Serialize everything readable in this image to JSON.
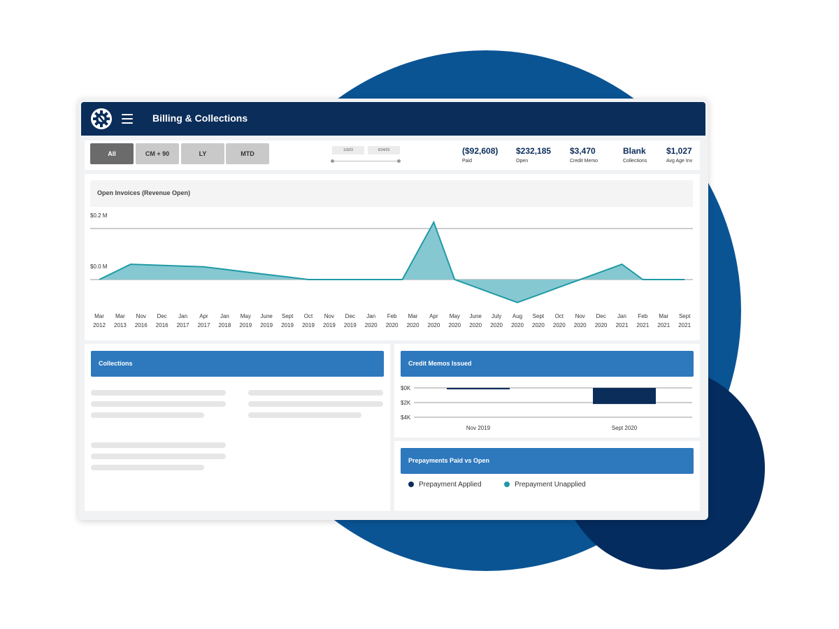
{
  "app": {
    "title": "Billing & Collections",
    "logo_icon": "gear-wrench-logo-icon",
    "menu_icon": "hamburger-menu-icon"
  },
  "filters": {
    "buttons": [
      {
        "label": "All",
        "active": true
      },
      {
        "label": "CM + 90",
        "active": false
      },
      {
        "label": "LY",
        "active": false
      },
      {
        "label": "MTD",
        "active": false
      }
    ],
    "date_start": "1/3/23",
    "date_end": "5/24/23"
  },
  "kpis": [
    {
      "value": "($92,608)",
      "label": "Paid"
    },
    {
      "value": "$232,185",
      "label": "Open"
    },
    {
      "value": "$3,470",
      "label": "Credit Memo"
    },
    {
      "value": "Blank",
      "label": "Collections"
    },
    {
      "value": "$1,027",
      "label": "Avg Age Inv"
    }
  ],
  "open_invoices": {
    "title": "Open Invoices (Revenue Open)",
    "chart_data": {
      "type": "area",
      "title": "Open Invoices (Revenue Open)",
      "y_tick_labels": [
        "$0.2 M",
        "$0.0 M"
      ],
      "y_ticks": [
        0.2,
        0.0
      ],
      "ylim": [
        -0.09,
        0.22
      ],
      "categories": [
        [
          "Mar",
          "2012"
        ],
        [
          "Mar",
          "2013"
        ],
        [
          "Nov",
          "2016"
        ],
        [
          "Dec",
          "2016"
        ],
        [
          "Jan",
          "2017"
        ],
        [
          "Apr",
          "2017"
        ],
        [
          "Jan",
          "2018"
        ],
        [
          "May",
          "2019"
        ],
        [
          "June",
          "2019"
        ],
        [
          "Sept",
          "2019"
        ],
        [
          "Oct",
          "2019"
        ],
        [
          "Nov",
          "2019"
        ],
        [
          "Dec",
          "2019"
        ],
        [
          "Jan",
          "2020"
        ],
        [
          "Feb",
          "2020"
        ],
        [
          "Mar",
          "2020"
        ],
        [
          "Apr",
          "2020"
        ],
        [
          "May",
          "2020"
        ],
        [
          "June",
          "2020"
        ],
        [
          "July",
          "2020"
        ],
        [
          "Aug",
          "2020"
        ],
        [
          "Sept",
          "2020"
        ],
        [
          "Oct",
          "2020"
        ],
        [
          "Nov",
          "2020"
        ],
        [
          "Dec",
          "2020"
        ],
        [
          "Jan",
          "2021"
        ],
        [
          "Feb",
          "2021"
        ],
        [
          "Mar",
          "2021"
        ],
        [
          "Sept",
          "2021"
        ]
      ],
      "values": [
        0.0,
        0.02,
        0.04,
        0.06,
        0.05,
        0.04,
        0.03,
        0.02,
        0.01,
        0.0,
        0.0,
        0.0,
        0.0,
        0.0,
        0.0,
        0.0,
        0.225,
        0.0,
        -0.03,
        -0.06,
        -0.09,
        -0.06,
        -0.03,
        0.0,
        0.03,
        0.06,
        0.0,
        0.0,
        0.0
      ],
      "point_x_index": [
        0,
        0.5,
        1,
        1.5,
        5,
        6,
        7,
        8,
        9,
        10,
        11,
        12,
        13,
        13.5,
        14,
        14.5,
        16,
        17,
        18,
        19,
        20,
        21,
        22,
        23,
        24,
        25,
        26,
        27,
        28
      ],
      "fill": "#86c8d1",
      "stroke": "#1f9aa5",
      "grid": true
    }
  },
  "collections": {
    "title": "Collections"
  },
  "credit_memos": {
    "title": "Credit Memos Issued",
    "chart_data": {
      "type": "bar",
      "title": "Credit Memos Issued",
      "categories": [
        "Nov 2019",
        "Sept 2020"
      ],
      "values": [
        -0.2,
        -2.2
      ],
      "y_tick_labels": [
        "$0K",
        "$2K",
        "$4K"
      ],
      "y_ticks": [
        0,
        -2,
        -4
      ],
      "ylim": [
        -4,
        0
      ],
      "color": "#0b2d5a",
      "grid": true
    }
  },
  "prepayments": {
    "title": "Prepayments Paid vs Open",
    "legend": [
      {
        "label": "Prepayment Applied",
        "color": "#0b2d5a"
      },
      {
        "label": "Prepayment Unapplied",
        "color": "#1f9aa5"
      }
    ]
  }
}
